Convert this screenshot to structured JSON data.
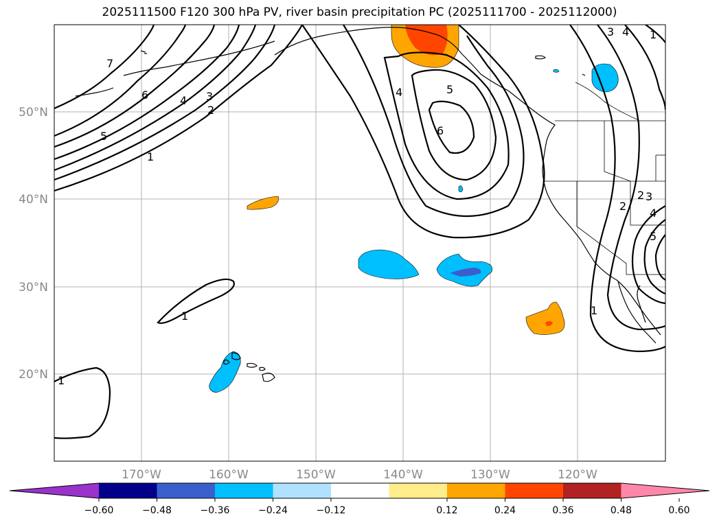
{
  "title": "2025111500 F120 300 hPa PV, river basin precipitation PC (2025111700 - 2025112000)",
  "map": {
    "lon_range": [
      -180,
      -110
    ],
    "lat_range": [
      10,
      60
    ],
    "lat_labels": [
      "50°N",
      "40°N",
      "30°N",
      "20°N"
    ],
    "lon_labels": [
      "170°W",
      "160°W",
      "150°W",
      "140°W",
      "130°W",
      "120°W"
    ],
    "contour_labels": [
      "7",
      "6",
      "4",
      "3",
      "2",
      "5",
      "1",
      "1",
      "1",
      "4",
      "5",
      "6",
      "3",
      "4",
      "2",
      "1",
      "2",
      "3",
      "4",
      "5",
      "1"
    ]
  },
  "colorbar": {
    "ticks": [
      "−0.60",
      "−0.48",
      "−0.36",
      "−0.24",
      "−0.12",
      "0.12",
      "0.24",
      "0.36",
      "0.48",
      "0.60"
    ],
    "colors": [
      "#9933cc",
      "#00008b",
      "#3a5fcd",
      "#00bfff",
      "#b0e2ff",
      "#ffffff",
      "#ffec8b",
      "#ffa500",
      "#ff4500",
      "#b22222",
      "#ff88aa"
    ]
  }
}
